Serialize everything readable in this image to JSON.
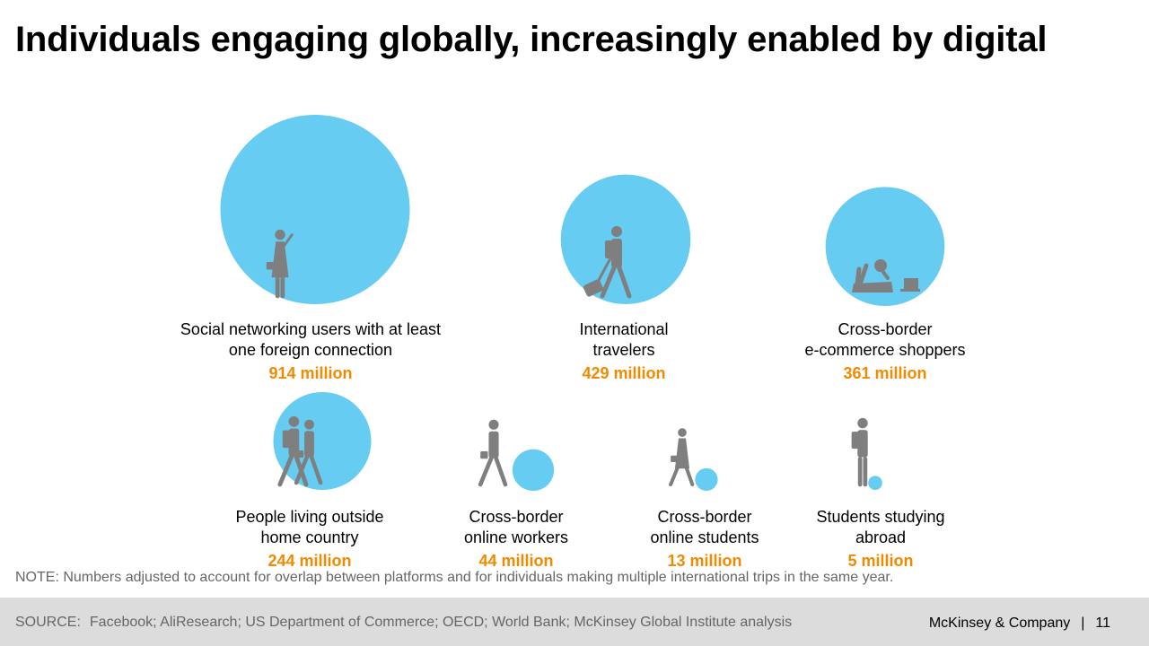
{
  "title": "Individuals engaging globally, increasingly enabled by digital",
  "chart_data": {
    "type": "bubble",
    "unit": "million",
    "items": [
      {
        "label_lines": [
          "Social networking users with at least",
          "one foreign connection"
        ],
        "value": 914,
        "value_label": "914 million",
        "icon": "woman-phone-icon"
      },
      {
        "label_lines": [
          "International",
          "travelers"
        ],
        "value": 429,
        "value_label": "429 million",
        "icon": "traveler-suitcase-icon"
      },
      {
        "label_lines": [
          "Cross-border",
          "e-commerce shoppers"
        ],
        "value": 361,
        "value_label": "361 million",
        "icon": "person-laptop-icon"
      },
      {
        "label_lines": [
          "People living outside",
          "home country"
        ],
        "value": 244,
        "value_label": "244 million",
        "icon": "family-icon"
      },
      {
        "label_lines": [
          "Cross-border",
          "online workers"
        ],
        "value": 44,
        "value_label": "44 million",
        "icon": "walking-worker-icon"
      },
      {
        "label_lines": [
          "Cross-border",
          "online students"
        ],
        "value": 13,
        "value_label": "13 million",
        "icon": "walking-student-icon"
      },
      {
        "label_lines": [
          "Students studying",
          "abroad"
        ],
        "value": 5,
        "value_label": "5 million",
        "icon": "standing-student-icon"
      }
    ]
  },
  "colors": {
    "bubble": "#66ccf2",
    "value": "#f08a00",
    "icon": "#7f7f7f",
    "footer_bg": "#dcdcdc"
  },
  "note": "NOTE: Numbers adjusted to account for overlap between platforms and for individuals making multiple international trips in the same year.",
  "footer": {
    "source_label": "SOURCE:",
    "source_text": "Facebook; AliResearch; US Department of Commerce; OECD; World Bank; McKinsey Global Institute analysis",
    "brand": "McKinsey & Company",
    "separator": "|",
    "page_number": "11"
  }
}
